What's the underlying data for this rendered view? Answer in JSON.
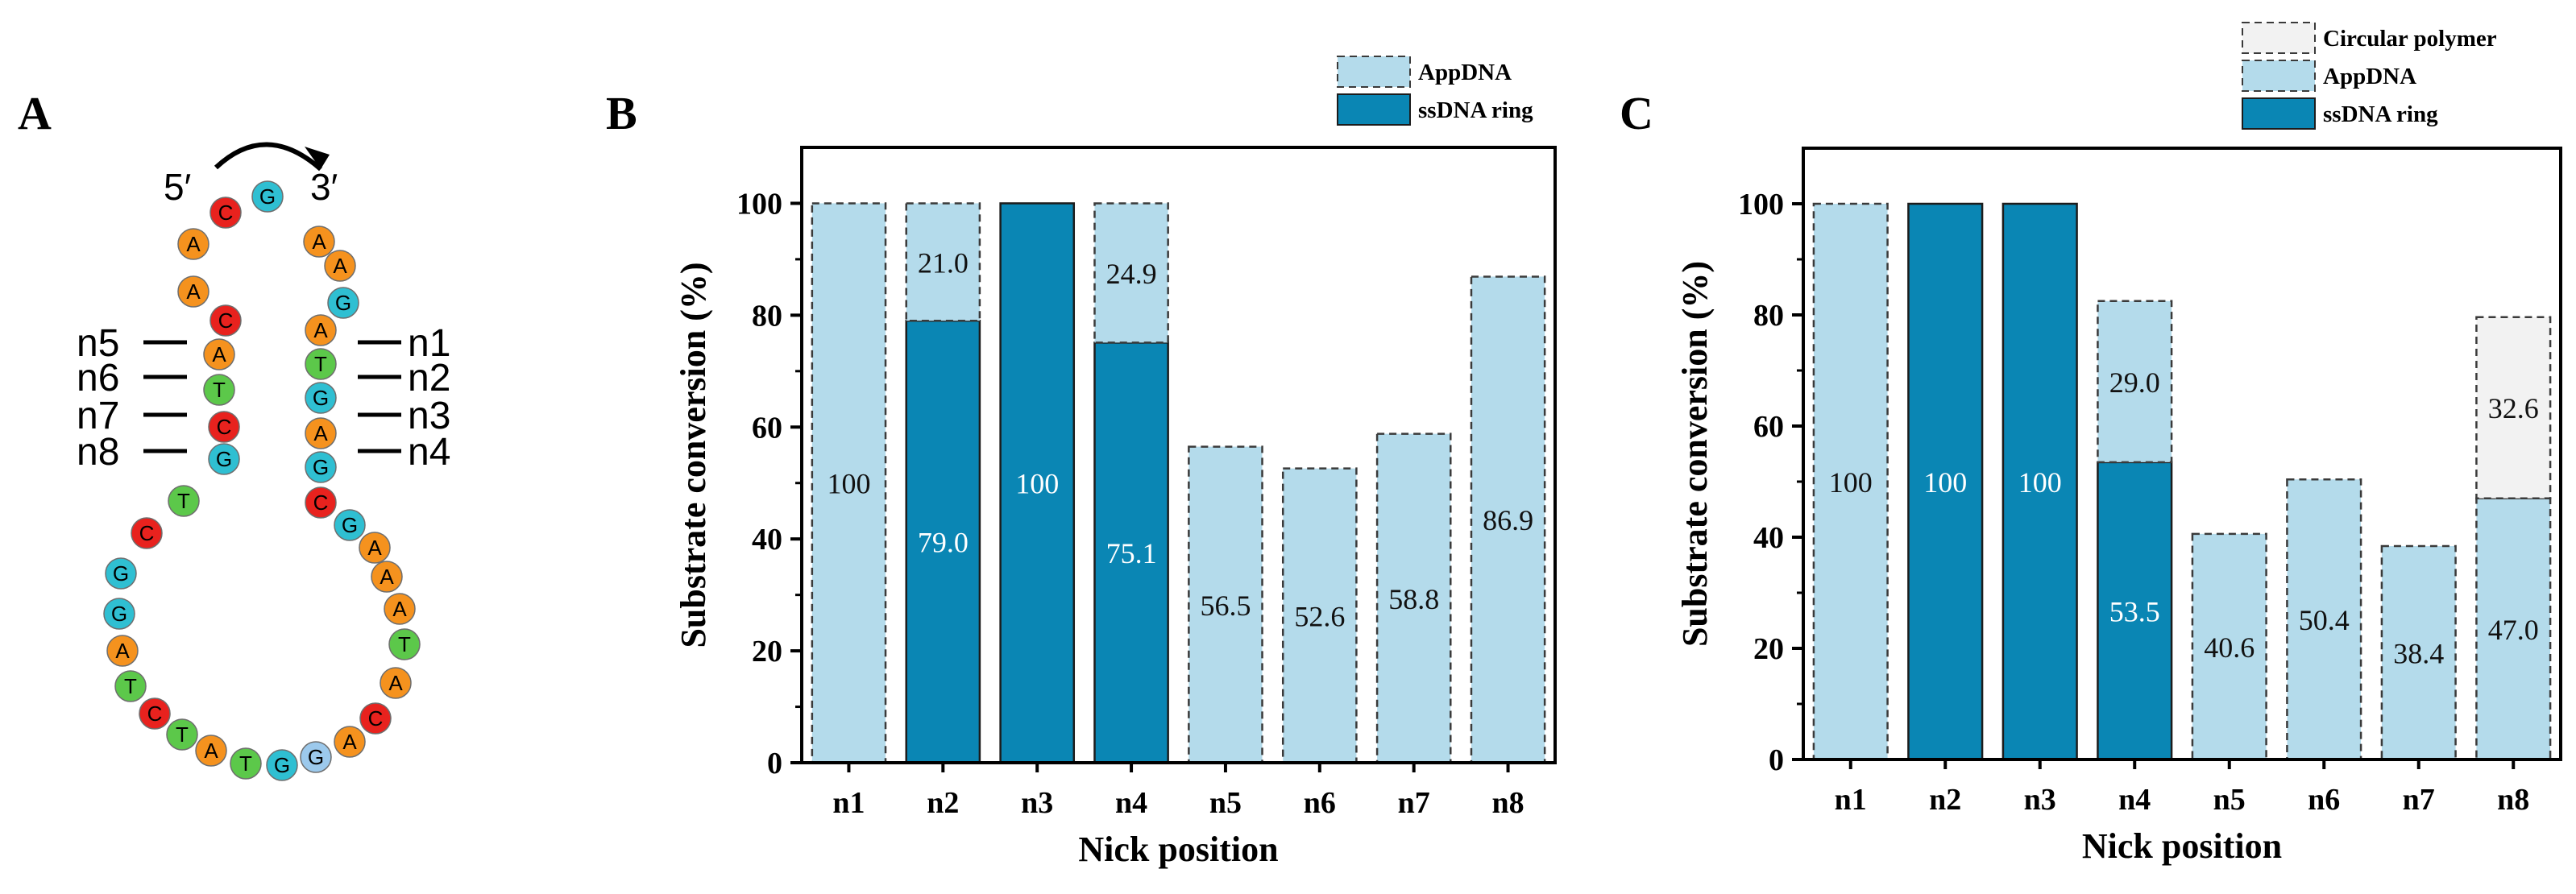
{
  "colors": {
    "ssDNA_ring": "#0a86b4",
    "AppDNA": "#b4dbeb",
    "circular_polymer": "#f2f2f2",
    "base_A": "#f5921e",
    "base_C": "#e8221e",
    "base_G": "#2fbfd2",
    "base_T": "#5cc84a",
    "base_G_light": "#9cc9ec"
  },
  "panel_a": {
    "letter": "A",
    "five_prime": "5′",
    "three_prime": "3′",
    "nick_labels_left": [
      "n5",
      "n6",
      "n7",
      "n8"
    ],
    "nick_labels_right": [
      "n1",
      "n2",
      "n3",
      "n4"
    ],
    "sequence_bases": [
      "C",
      "A",
      "A",
      "C",
      "A",
      "T",
      "C",
      "G",
      "T",
      "C",
      "G",
      "G",
      "A",
      "T",
      "C",
      "T",
      "A",
      "T",
      "G",
      "G",
      "A",
      "C",
      "A",
      "T",
      "A",
      "A",
      "A",
      "G",
      "C",
      "G",
      "A",
      "G",
      "T",
      "A",
      "G",
      "A",
      "A",
      "G"
    ]
  },
  "chart_data": [
    {
      "panel": "B",
      "type": "bar",
      "stacked": true,
      "categories": [
        "n1",
        "n2",
        "n3",
        "n4",
        "n5",
        "n6",
        "n7",
        "n8"
      ],
      "series": [
        {
          "name": "ssDNA ring",
          "values": [
            0,
            79.0,
            100,
            75.1,
            0,
            0,
            0,
            0
          ]
        },
        {
          "name": "AppDNA",
          "values": [
            100,
            21.0,
            0,
            24.9,
            56.5,
            52.6,
            58.8,
            86.9
          ]
        }
      ],
      "data_labels": [
        [
          "",
          "79.0",
          "100",
          "75.1",
          "",
          "",
          "",
          ""
        ],
        [
          "100",
          "21.0",
          "",
          "24.9",
          "56.5",
          "52.6",
          "58.8",
          "86.9"
        ]
      ],
      "xlabel": "Nick position",
      "ylabel": "Substrate conversion (%)",
      "ylim": [
        0,
        110
      ],
      "yticks": [
        0,
        20,
        40,
        60,
        80,
        100
      ],
      "legend_placement": "top-right-outside",
      "legend_order": [
        "AppDNA",
        "ssDNA ring"
      ]
    },
    {
      "panel": "C",
      "type": "bar",
      "stacked": true,
      "categories": [
        "n1",
        "n2",
        "n3",
        "n4",
        "n5",
        "n6",
        "n7",
        "n8"
      ],
      "series": [
        {
          "name": "ssDNA ring",
          "values": [
            0,
            100,
            100,
            53.5,
            0,
            0,
            0,
            0
          ]
        },
        {
          "name": "AppDNA",
          "values": [
            100,
            0,
            0,
            29.0,
            40.6,
            50.4,
            38.4,
            47.0
          ]
        },
        {
          "name": "Circular polymer",
          "values": [
            0,
            0,
            0,
            0,
            0,
            0,
            0,
            32.6
          ]
        }
      ],
      "data_labels": [
        [
          "",
          "100",
          "100",
          "53.5",
          "",
          "",
          "",
          ""
        ],
        [
          "100",
          "",
          "",
          "29.0",
          "40.6",
          "50.4",
          "38.4",
          "47.0"
        ],
        [
          "",
          "",
          "",
          "",
          "",
          "",
          "",
          "32.6"
        ]
      ],
      "xlabel": "Nick position",
      "ylabel": "Substrate conversion (%)",
      "ylim": [
        0,
        110
      ],
      "yticks": [
        0,
        20,
        40,
        60,
        80,
        100
      ],
      "legend_placement": "top-right-outside",
      "legend_order": [
        "Circular polymer",
        "AppDNA",
        "ssDNA ring"
      ]
    }
  ]
}
